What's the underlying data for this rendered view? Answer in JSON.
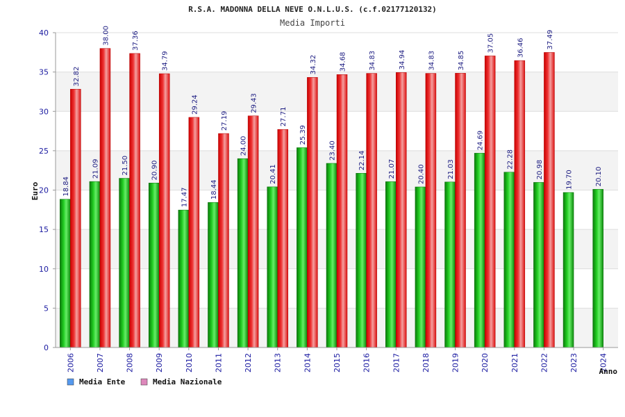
{
  "chart_data": {
    "type": "bar",
    "title": "R.S.A. MADONNA DELLA NEVE O.N.L.U.S. (c.f.02177120132)",
    "subtitle": "Media Importi",
    "xlabel": "Anno",
    "ylabel": "Euro",
    "ylim": [
      0,
      40
    ],
    "yticks": [
      0,
      5,
      10,
      15,
      20,
      25,
      30,
      35,
      40
    ],
    "categories": [
      "2006",
      "2007",
      "2008",
      "2009",
      "2010",
      "2011",
      "2012",
      "2013",
      "2014",
      "2015",
      "2016",
      "2017",
      "2018",
      "2019",
      "2020",
      "2021",
      "2022",
      "2023",
      "2024"
    ],
    "series": [
      {
        "name": "Media Ente",
        "color": "#00bb00",
        "legend_color": "#5599ee",
        "values": [
          18.84,
          21.09,
          21.5,
          20.9,
          17.47,
          18.44,
          24.0,
          20.41,
          25.39,
          23.4,
          22.14,
          21.07,
          20.4,
          21.03,
          24.69,
          22.28,
          20.98,
          19.7,
          20.1
        ],
        "labels": [
          "18.84",
          "21.09",
          "21.50",
          "20.90",
          "17.47",
          "18.44",
          "24.00",
          "20.41",
          "25.39",
          "23.40",
          "22.14",
          "21.07",
          "20.40",
          "21.03",
          "24.69",
          "22.28",
          "20.98",
          "19.70",
          "20.10"
        ]
      },
      {
        "name": "Media Nazionale",
        "color": "#ee1111",
        "legend_color": "#dd88bb",
        "values": [
          32.82,
          38.0,
          37.36,
          34.79,
          29.24,
          27.19,
          29.43,
          27.71,
          34.32,
          34.68,
          34.83,
          34.94,
          34.83,
          34.85,
          37.05,
          36.46,
          37.49,
          null,
          null
        ],
        "labels": [
          "32.82",
          "38.00",
          "37.36",
          "34.79",
          "29.24",
          "27.19",
          "29.43",
          "27.71",
          "34.32",
          "34.68",
          "34.83",
          "34.94",
          "34.83",
          "34.85",
          "37.05",
          "36.46",
          "37.49",
          null,
          null
        ]
      }
    ],
    "legend_position": "bottom-left",
    "grid": true
  }
}
